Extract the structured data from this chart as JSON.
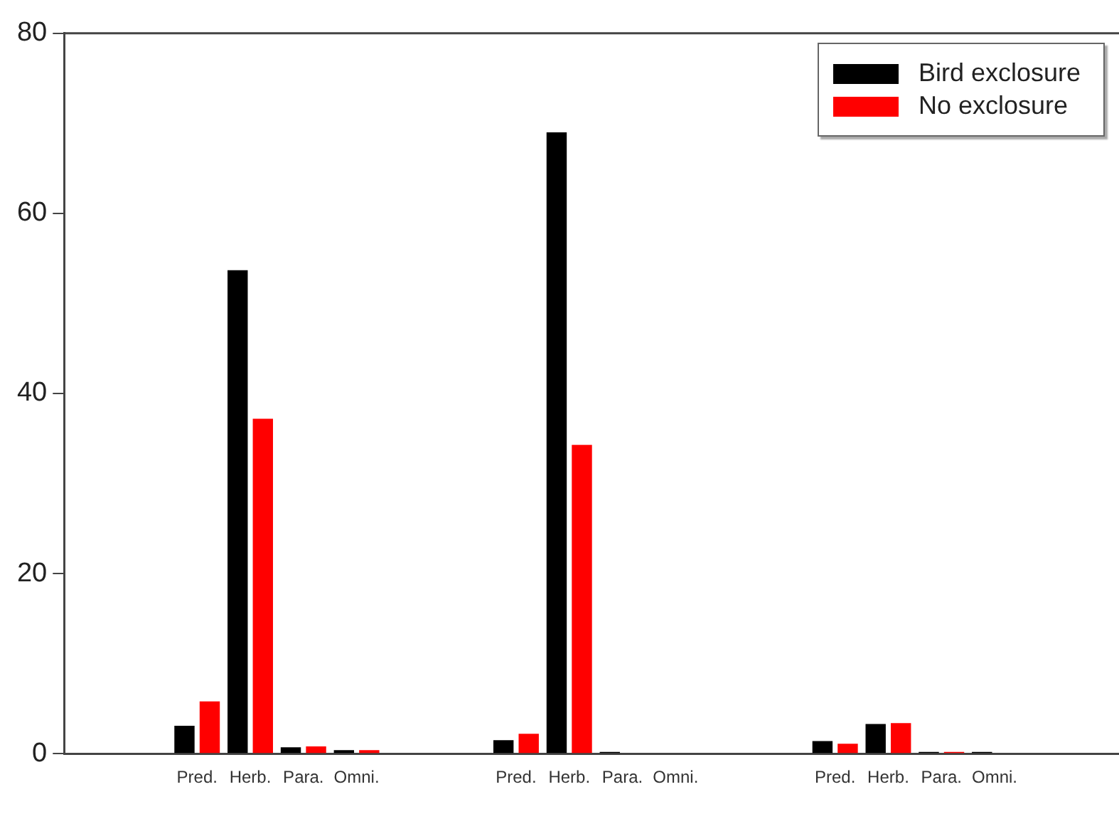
{
  "chart_data": {
    "type": "bar",
    "categories": [
      null,
      null,
      "Pred.",
      "Herb.",
      "Para.",
      "Omni.",
      null,
      null,
      "Pred.",
      "Herb.",
      "Para.",
      "Omni.",
      null,
      null,
      "Pred.",
      "Herb.",
      "Para.",
      "Omni.",
      null,
      null
    ],
    "series": [
      {
        "name": "Bird exclosure",
        "color": "#000000",
        "values": [
          null,
          null,
          3.1,
          53.7,
          0.7,
          0.4,
          null,
          null,
          1.5,
          69,
          0.2,
          0,
          null,
          null,
          1.4,
          3.3,
          0.2,
          0.2,
          null,
          null
        ]
      },
      {
        "name": "No exclosure",
        "color": "#ff0000",
        "values": [
          null,
          null,
          5.8,
          37.2,
          0.8,
          0.4,
          null,
          null,
          2.2,
          34.3,
          0,
          0,
          null,
          null,
          1.1,
          3.4,
          0.2,
          0,
          null,
          null
        ]
      }
    ],
    "ylim": [
      0,
      80
    ],
    "yticks": [
      0,
      20,
      40,
      60,
      80
    ],
    "grid": false,
    "legend": "top right"
  }
}
